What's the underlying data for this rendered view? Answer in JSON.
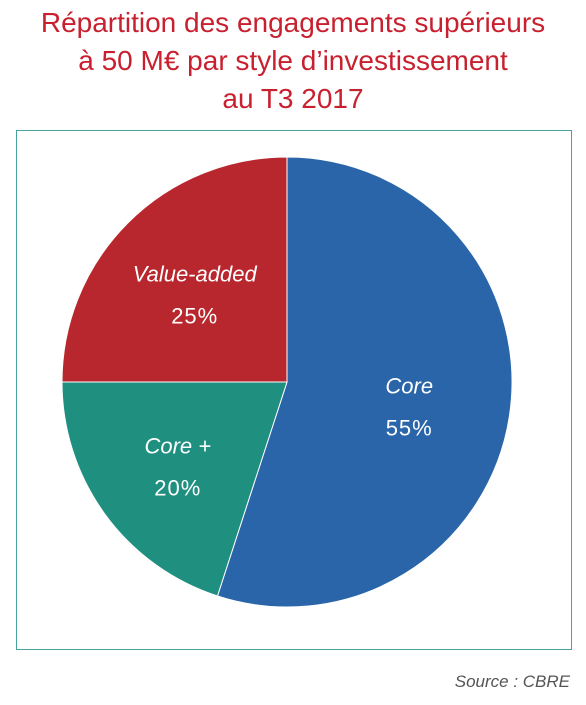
{
  "title_lines": [
    "Répartition des engagements supérieurs",
    "à 50 M€ par style d’investissement",
    "au T3 2017"
  ],
  "source": "Source : CBRE",
  "colors": {
    "title": "#c8202f",
    "frame": "#46a3a2",
    "core": "#2965a8",
    "core_plus": "#1f8f80",
    "value_added": "#b8272d"
  },
  "chart_data": {
    "type": "pie",
    "title": "Répartition des engagements supérieurs à 50 M€ par style d’investissement au T3 2017",
    "slices": [
      {
        "label": "Core",
        "value": 55,
        "value_label": "55%",
        "color": "#2965a8"
      },
      {
        "label": "Core +",
        "value": 20,
        "value_label": "20%",
        "color": "#1f8f80"
      },
      {
        "label": "Value-added",
        "value": 25,
        "value_label": "25%",
        "color": "#b8272d"
      }
    ]
  }
}
